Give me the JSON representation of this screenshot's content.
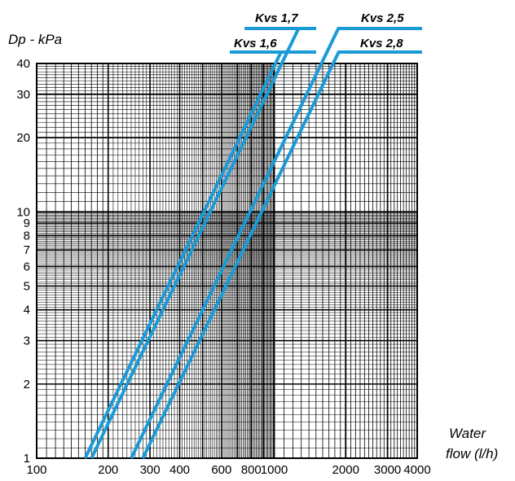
{
  "chart_data": {
    "type": "line",
    "title": "",
    "ylabel": "Dp - kPa",
    "xlabel_line1": "Water",
    "xlabel_line2": "flow (l/h)",
    "x_scale": "log",
    "y_scale": "log",
    "xlim": [
      100,
      4000
    ],
    "ylim": [
      1,
      40
    ],
    "grid": true,
    "x_ticks": [
      {
        "value": 100,
        "label": "100"
      },
      {
        "value": 200,
        "label": "200"
      },
      {
        "value": 300,
        "label": "300"
      },
      {
        "value": 400,
        "label": "400"
      },
      {
        "value": 600,
        "label": "600"
      },
      {
        "value": 800,
        "label": "800"
      },
      {
        "value": 1000,
        "label": "1000"
      },
      {
        "value": 2000,
        "label": "2000"
      },
      {
        "value": 3000,
        "label": "3000"
      },
      {
        "value": 4000,
        "label": "4000"
      }
    ],
    "y_ticks": [
      {
        "value": 1,
        "label": "1"
      },
      {
        "value": 2,
        "label": "2"
      },
      {
        "value": 3,
        "label": "3"
      },
      {
        "value": 4,
        "label": "4"
      },
      {
        "value": 5,
        "label": "5"
      },
      {
        "value": 6,
        "label": "6"
      },
      {
        "value": 7,
        "label": "7"
      },
      {
        "value": 8,
        "label": "8"
      },
      {
        "value": 9,
        "label": "9"
      },
      {
        "value": 10,
        "label": "10"
      },
      {
        "value": 20,
        "label": "20"
      },
      {
        "value": 30,
        "label": "30"
      },
      {
        "value": 40,
        "label": "40"
      }
    ],
    "line_color": "#1a9ad6",
    "series": [
      {
        "name": "Kvs 1,6",
        "kvs": 1.6,
        "x": [
          160,
          1012
        ],
        "y": [
          1,
          40
        ]
      },
      {
        "name": "Kvs 1,7",
        "kvs": 1.7,
        "x": [
          170,
          1075
        ],
        "y": [
          1,
          40
        ]
      },
      {
        "name": "Kvs 2,5",
        "kvs": 2.5,
        "x": [
          250,
          1581
        ],
        "y": [
          1,
          40
        ]
      },
      {
        "name": "Kvs 2,8",
        "kvs": 2.8,
        "x": [
          280,
          1771
        ],
        "y": [
          1,
          40
        ]
      }
    ]
  }
}
